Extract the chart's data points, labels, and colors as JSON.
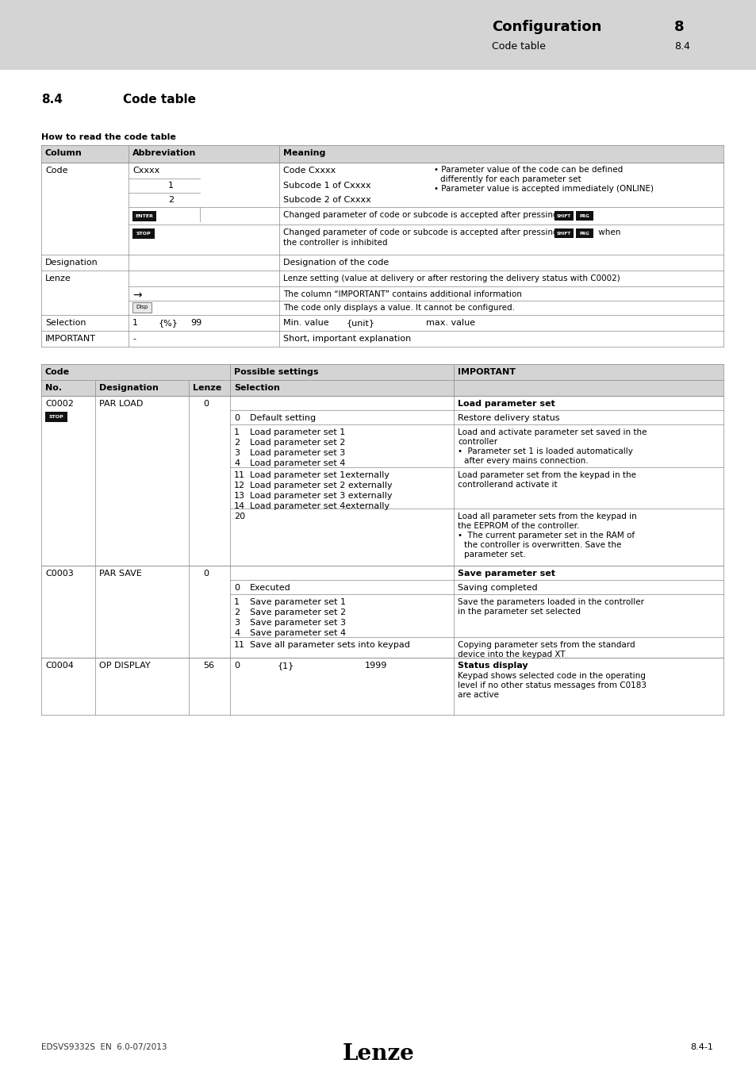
{
  "page_bg": "#e8e8e8",
  "content_bg": "#ffffff",
  "header_bg": "#d4d4d4",
  "table_header_bg": "#d4d4d4",
  "border_color": "#aaaaaa",
  "text_color": "#000000",
  "header_title": "Configuration",
  "header_chapter": "8",
  "header_subtitle": "Code table",
  "header_section": "8.4",
  "section_title": "8.4",
  "section_name": "Code table",
  "how_to_label": "How to read the code table",
  "footer_left": "EDSVS9332S  EN  6.0-07/2013",
  "footer_center": "Lenze",
  "footer_right": "8.4-1"
}
